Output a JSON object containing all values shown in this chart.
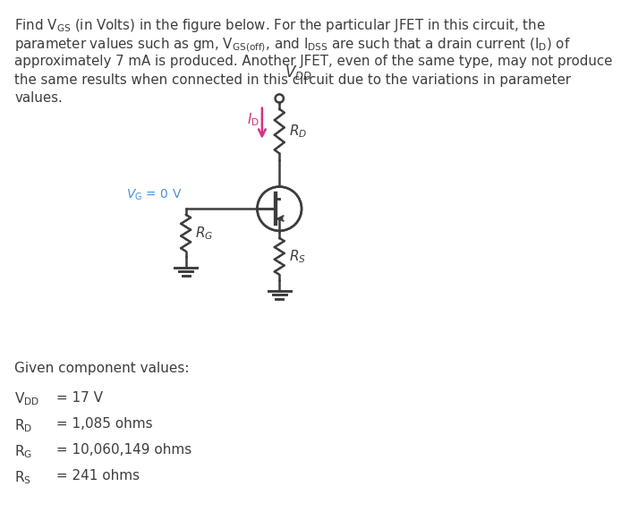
{
  "bg_color": "#ffffff",
  "text_color": "#3d3d3d",
  "text_color_blue": "#4a7fb5",
  "vg_color": "#4a90d9",
  "arrow_color": "#d63384",
  "circuit_line_color": "#3d3d3d",
  "header_lines": [
    "Find V$_\\mathregular{GS}$ (in Volts) in the figure below. For the particular JFET in this circuit, the",
    "parameter values such as gm, V$_\\mathregular{GS(off)}$, and I$_\\mathregular{DSS}$ are such that a drain current (I$_\\mathregular{D}$) of",
    "approximately 7 mA is produced. Another JFET, even of the same type, may not produce",
    "the same results when connected in this circuit due to the variations in parameter",
    "values."
  ],
  "given_label": "Given component values:",
  "values": [
    [
      "V$_\\mathregular{DD}$",
      " = 17 V"
    ],
    [
      "R$_\\mathregular{D}$",
      " = 1,085 ohms"
    ],
    [
      "R$_\\mathregular{G}$",
      " = 10,060,149 ohms"
    ],
    [
      "R$_\\mathregular{S}$",
      " = 241 ohms"
    ]
  ]
}
